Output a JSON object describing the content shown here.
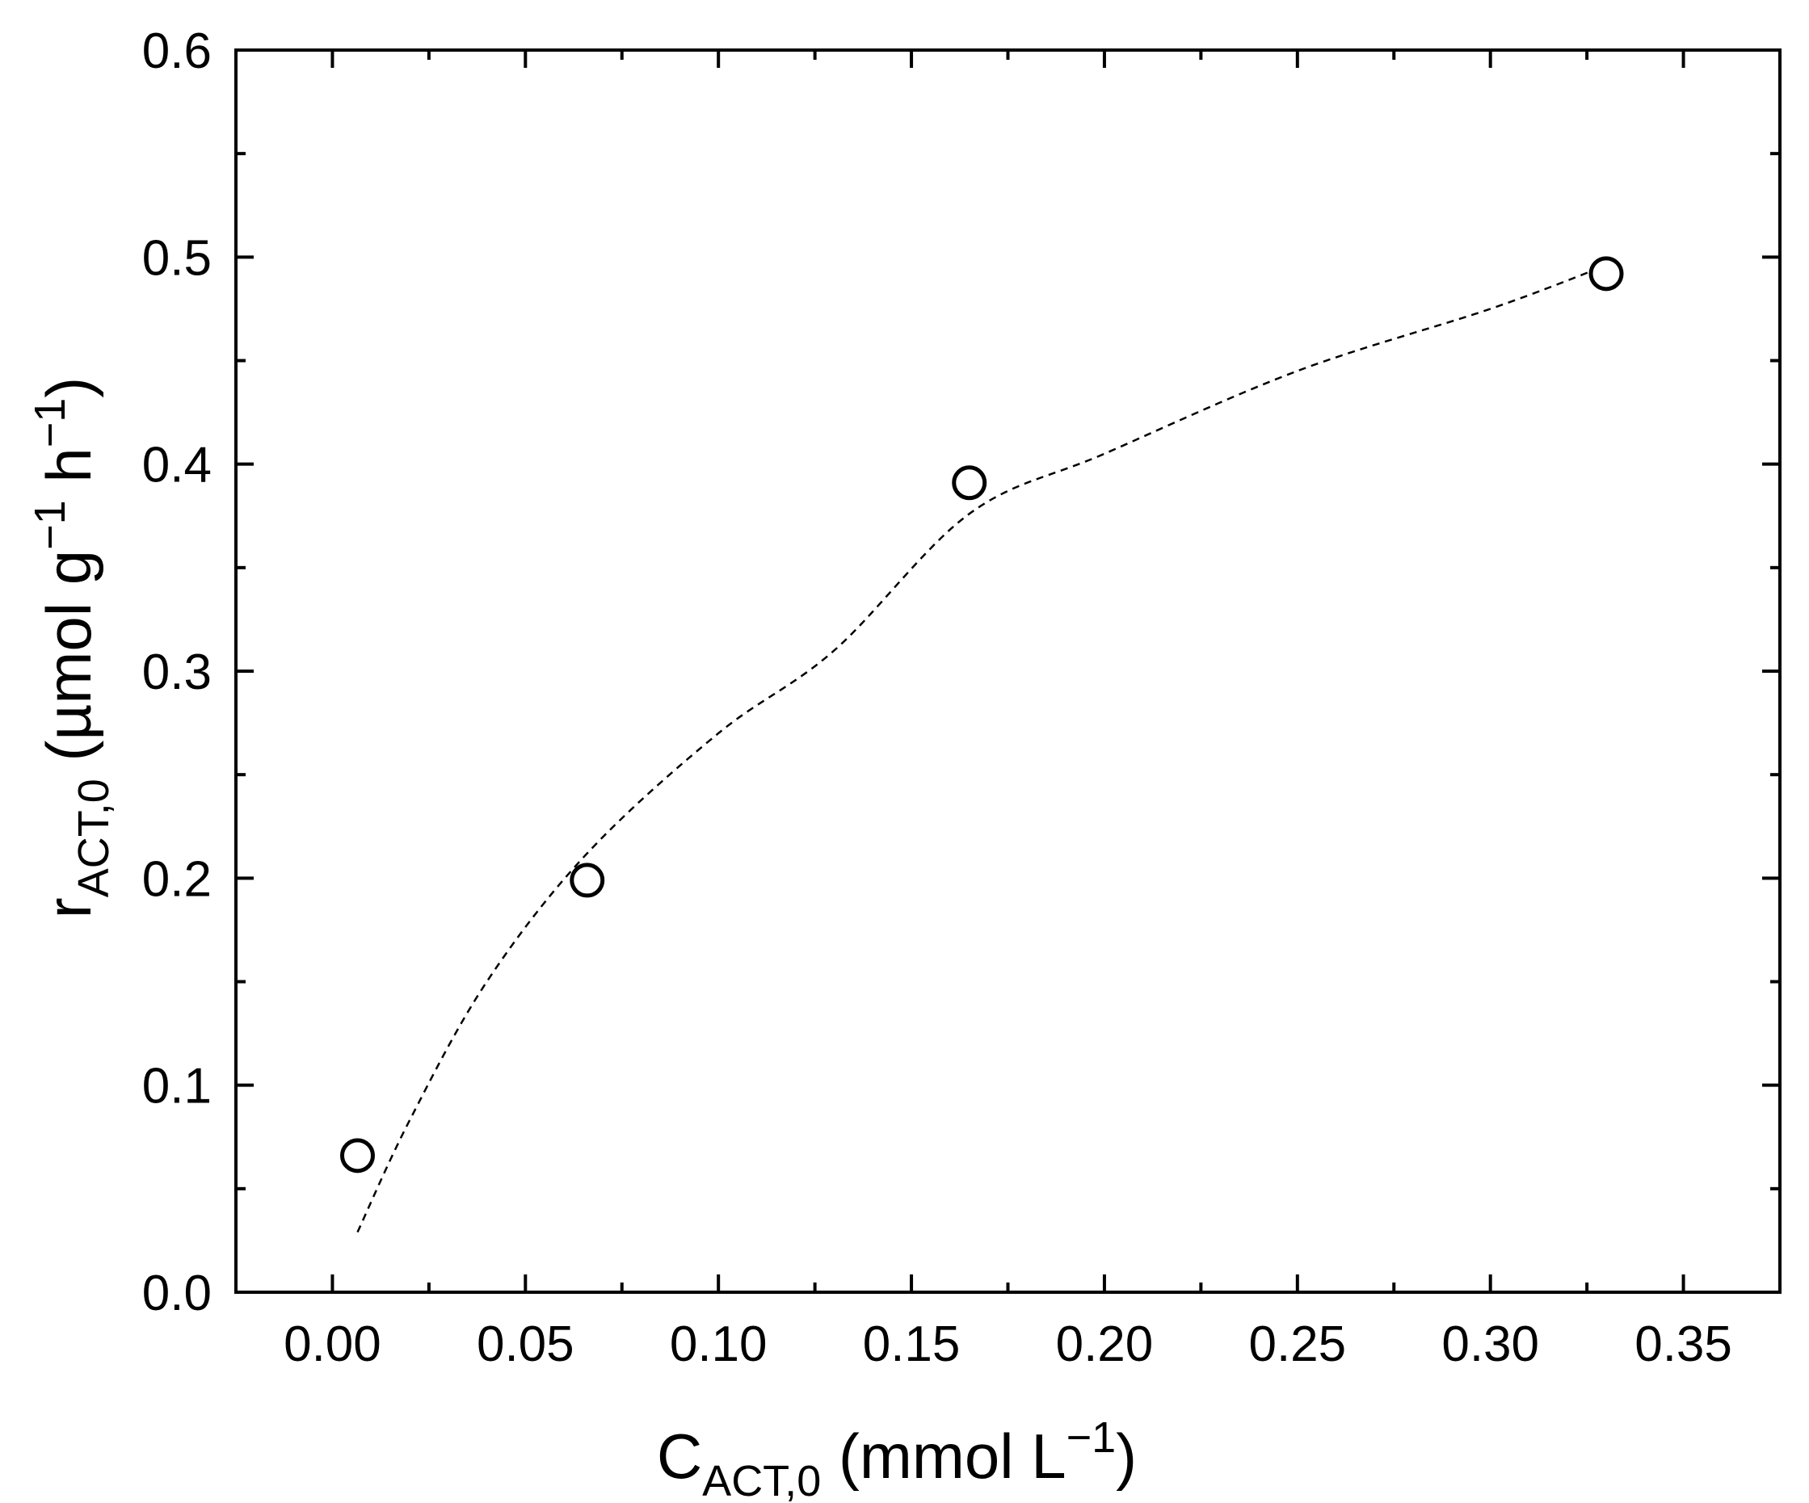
{
  "chart_data": {
    "type": "scatter",
    "title": "",
    "xlabel": {
      "main": "C",
      "sub": "ACT,0",
      "pre": " (mmol L",
      "sup": "−1",
      "post": ")"
    },
    "ylabel": {
      "main": "r",
      "sub": "ACT,0",
      "pre": " (µmol g",
      "sup1": "−1",
      "mid": " h",
      "sup2": "−1",
      "post": ")"
    },
    "xlim": [
      -0.025,
      0.375
    ],
    "ylim": [
      0.0,
      0.6
    ],
    "x_ticks": [
      0.0,
      0.05,
      0.1,
      0.15,
      0.2,
      0.25,
      0.3,
      0.35
    ],
    "x_tick_labels": [
      "0.00",
      "0.05",
      "0.10",
      "0.15",
      "0.20",
      "0.25",
      "0.30",
      "0.35"
    ],
    "x_minor_ticks": [
      -0.025,
      0.025,
      0.075,
      0.125,
      0.175,
      0.225,
      0.275,
      0.325,
      0.375
    ],
    "y_ticks": [
      0.0,
      0.1,
      0.2,
      0.3,
      0.4,
      0.5,
      0.6
    ],
    "y_tick_labels": [
      "0.0",
      "0.1",
      "0.2",
      "0.3",
      "0.4",
      "0.5",
      "0.6"
    ],
    "y_minor_ticks": [
      0.05,
      0.15,
      0.25,
      0.35,
      0.45,
      0.55
    ],
    "grid": false,
    "series": [
      {
        "marker": "open-circle",
        "x": [
          0.0065,
          0.066,
          0.165,
          0.33
        ],
        "y": [
          0.066,
          0.199,
          0.391,
          0.492
        ]
      }
    ],
    "fit_curve": {
      "style": "dashed",
      "x_range": [
        0.0065,
        0.33
      ],
      "x": [
        0.0065,
        0.02,
        0.04,
        0.066,
        0.1,
        0.13,
        0.165,
        0.2,
        0.25,
        0.3,
        0.33
      ],
      "y": [
        0.029,
        0.083,
        0.15,
        0.212,
        0.27,
        0.31,
        0.376,
        0.405,
        0.445,
        0.475,
        0.496
      ]
    },
    "colors": {
      "axis": "#000000",
      "marker_stroke": "#000000",
      "marker_fill": "#ffffff",
      "curve": "#000000"
    }
  }
}
